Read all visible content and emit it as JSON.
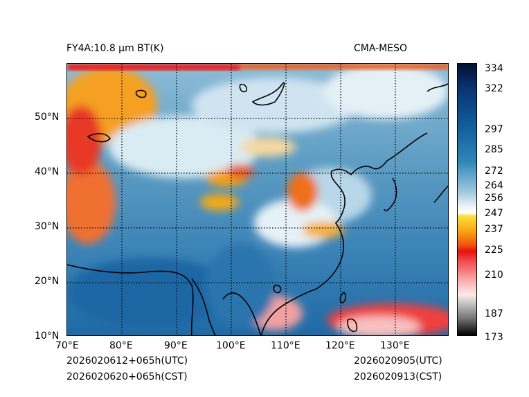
{
  "header": {
    "product_title": "FY4A:10.8 µm BT(K)",
    "model_name": "CMA-MESO"
  },
  "footer": {
    "init_time_utc": "2026020612+065h(UTC)",
    "init_time_cst": "2026020620+065h(CST)",
    "valid_time_utc": "2026020905(UTC)",
    "valid_time_cst": "2026020913(CST)"
  },
  "map": {
    "lon_range": [
      70,
      140
    ],
    "lat_range": [
      10,
      60
    ],
    "lon_ticks": [
      "70°E",
      "80°E",
      "90°E",
      "100°E",
      "110°E",
      "120°E",
      "130°E"
    ],
    "lat_ticks": [
      "10°N",
      "20°N",
      "30°N",
      "40°N",
      "50°N"
    ],
    "gridline_style": "dotted"
  },
  "colorbar": {
    "unit": "K",
    "min": 173,
    "max": 334,
    "tick_labels": [
      "334",
      "322",
      "297",
      "285",
      "272",
      "264",
      "256",
      "247",
      "237",
      "225",
      "210",
      "187",
      "173"
    ],
    "colors": {
      "cold": "#001030",
      "blue": "#0f5b98",
      "white": "#ffffff",
      "yellow": "#ffe040",
      "orange": "#f7a010",
      "red": "#e81010",
      "gray": "#707070",
      "black": "#000000"
    }
  }
}
